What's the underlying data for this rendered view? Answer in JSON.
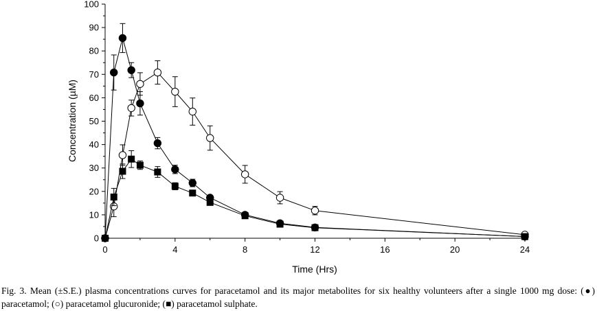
{
  "chart_data": {
    "type": "line",
    "xlabel": "Time (Hrs)",
    "ylabel": "Concentration (µM)",
    "xlim": [
      0,
      24
    ],
    "ylim": [
      0,
      100
    ],
    "xticks": [
      0,
      4,
      8,
      12,
      16,
      20,
      24
    ],
    "yticks": [
      0,
      10,
      20,
      30,
      40,
      50,
      60,
      70,
      80,
      90,
      100
    ],
    "grid": false,
    "error_bars": "±S.E.",
    "series": [
      {
        "marker": "filled-circle",
        "x": [
          0,
          0.5,
          1,
          1.5,
          2,
          3,
          4,
          5,
          6,
          8,
          10,
          12,
          24
        ],
        "y": [
          0,
          70.8,
          85.5,
          71.8,
          57.6,
          40.6,
          29.4,
          23.6,
          17.3,
          10.0,
          6.4,
          4.6,
          0.7
        ],
        "err": [
          0,
          7.5,
          6.2,
          3.2,
          5.0,
          2.4,
          1.8,
          1.6,
          1.0,
          0.6,
          0.5,
          0.4,
          0.2
        ]
      },
      {
        "marker": "open-circle",
        "x": [
          0,
          0.5,
          1,
          1.5,
          2,
          3,
          4,
          5,
          6,
          8,
          10,
          12,
          24
        ],
        "y": [
          0,
          13.6,
          35.5,
          55.6,
          65.9,
          70.8,
          62.6,
          54.1,
          42.8,
          27.3,
          17.3,
          11.8,
          1.5
        ],
        "err": [
          0,
          4.4,
          4.4,
          3.4,
          4.8,
          5.0,
          6.4,
          5.8,
          5.2,
          3.8,
          2.6,
          1.8,
          0.3
        ]
      },
      {
        "marker": "filled-square",
        "x": [
          0,
          0.5,
          1,
          1.5,
          2,
          3,
          4,
          5,
          6,
          8,
          10,
          12,
          24
        ],
        "y": [
          0,
          17.6,
          28.6,
          33.8,
          31.2,
          28.3,
          22.2,
          19.3,
          15.3,
          9.6,
          6.0,
          4.5,
          0.7
        ],
        "err": [
          0,
          3.7,
          3.1,
          3.6,
          1.8,
          2.3,
          1.5,
          1.2,
          0.8,
          0.6,
          0.4,
          0.4,
          0.2
        ]
      }
    ]
  },
  "caption": {
    "part1": "Fig. 3. Mean (±S.E.) plasma concentrations curves for paracetamol and its major metabolites for six healthy volunteers after a single 1000 mg dose: (",
    "symbol1": "●",
    "label1": ") paracetamol; (",
    "symbol2": "○",
    "label2": ") paracetamol glucuronide; (",
    "symbol3": "■",
    "label3": ") paracetamol sulphate."
  }
}
